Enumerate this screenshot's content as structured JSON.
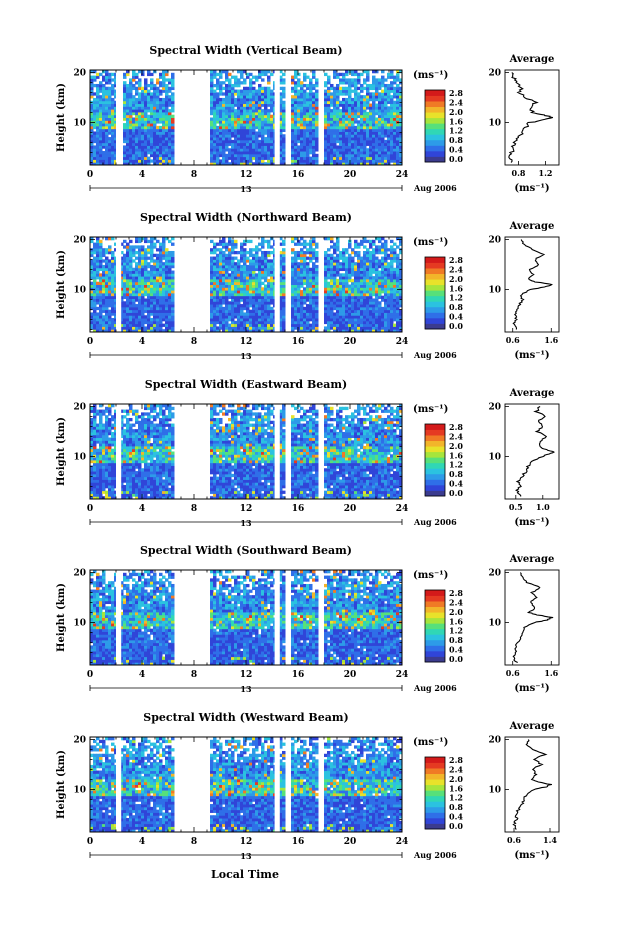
{
  "figure": {
    "xlabel": "Local Time",
    "date_label": "Aug 2006",
    "day_label": "13",
    "ylabel": "Height (km)",
    "unit_label": "(ms⁻¹)",
    "avg_title": "Average",
    "avg_xlabel": "(ms⁻¹)"
  },
  "colorbar": {
    "ticks": [
      "0.0",
      "0.4",
      "0.8",
      "1.2",
      "1.6",
      "2.0",
      "2.4",
      "2.8"
    ],
    "colors": [
      "#3b3b8f",
      "#3045d8",
      "#2f6fe8",
      "#2d9be8",
      "#2bc2e0",
      "#30d7b5",
      "#57e07a",
      "#a6e53c",
      "#e8e22a",
      "#f2b52a",
      "#f07a25",
      "#e53a22",
      "#d41a1a"
    ]
  },
  "chart_data": [
    {
      "type": "heatmap",
      "title": "Spectral Width (Vertical Beam)",
      "x_ticks": [
        0,
        4,
        8,
        12,
        16,
        20,
        24
      ],
      "xlim": [
        0,
        24
      ],
      "y_ticks": [
        10,
        20
      ],
      "ylim": [
        1.5,
        20.5
      ],
      "gaps": [
        [
          2.0,
          2.5
        ],
        [
          6.5,
          9.2
        ],
        [
          14.2,
          14.6
        ],
        [
          15.1,
          15.4
        ],
        [
          17.6,
          18.0
        ]
      ],
      "avg_ticks": [
        "0.8",
        "1.2"
      ],
      "avg_xlim": [
        0.6,
        1.4
      ],
      "avg_profile": [
        [
          2,
          0.72
        ],
        [
          3,
          0.68
        ],
        [
          4,
          0.7
        ],
        [
          5,
          0.72
        ],
        [
          6,
          0.75
        ],
        [
          7,
          0.8
        ],
        [
          8,
          0.85
        ],
        [
          9,
          0.9
        ],
        [
          10,
          0.97
        ],
        [
          10.5,
          1.15
        ],
        [
          11,
          1.32
        ],
        [
          11.5,
          1.18
        ],
        [
          12,
          1.02
        ],
        [
          13,
          0.98
        ],
        [
          14,
          1.05
        ],
        [
          15,
          0.9
        ],
        [
          16,
          0.82
        ],
        [
          17,
          0.85
        ],
        [
          18,
          0.76
        ],
        [
          19,
          0.73
        ],
        [
          20,
          0.7
        ]
      ]
    },
    {
      "type": "heatmap",
      "title": "Spectral Width (Northward Beam)",
      "x_ticks": [
        0,
        4,
        8,
        12,
        16,
        20,
        24
      ],
      "xlim": [
        0,
        24
      ],
      "y_ticks": [
        10,
        20
      ],
      "ylim": [
        1.5,
        20.5
      ],
      "gaps": [
        [
          2.0,
          2.4
        ],
        [
          6.5,
          9.2
        ],
        [
          14.2,
          14.6
        ],
        [
          15.1,
          15.4
        ],
        [
          17.6,
          18.0
        ]
      ],
      "avg_ticks": [
        "0.6",
        "1.6"
      ],
      "avg_xlim": [
        0.4,
        1.8
      ],
      "avg_profile": [
        [
          2,
          0.72
        ],
        [
          3,
          0.62
        ],
        [
          4,
          0.7
        ],
        [
          5,
          0.66
        ],
        [
          6,
          0.72
        ],
        [
          7,
          0.78
        ],
        [
          8,
          0.85
        ],
        [
          9,
          0.82
        ],
        [
          10,
          1.05
        ],
        [
          10.5,
          1.45
        ],
        [
          11,
          1.62
        ],
        [
          11.5,
          1.2
        ],
        [
          12,
          1.0
        ],
        [
          13,
          1.12
        ],
        [
          14,
          1.05
        ],
        [
          15,
          1.28
        ],
        [
          16,
          1.18
        ],
        [
          17,
          1.4
        ],
        [
          18,
          1.1
        ],
        [
          19,
          0.9
        ],
        [
          20,
          0.82
        ]
      ]
    },
    {
      "type": "heatmap",
      "title": "Spectral Width (Eastward Beam)",
      "x_ticks": [
        0,
        4,
        8,
        12,
        16,
        20,
        24
      ],
      "xlim": [
        0,
        24
      ],
      "y_ticks": [
        10,
        20
      ],
      "ylim": [
        1.5,
        20.5
      ],
      "gaps": [
        [
          2.0,
          2.4
        ],
        [
          6.5,
          9.2
        ],
        [
          14.2,
          14.6
        ],
        [
          15.1,
          15.4
        ],
        [
          17.6,
          18.0
        ]
      ],
      "avg_ticks": [
        "0.5",
        "1.0"
      ],
      "avg_xlim": [
        0.3,
        1.3
      ],
      "avg_profile": [
        [
          2,
          0.6
        ],
        [
          3,
          0.52
        ],
        [
          4,
          0.58
        ],
        [
          5,
          0.55
        ],
        [
          6,
          0.62
        ],
        [
          7,
          0.68
        ],
        [
          8,
          0.72
        ],
        [
          9,
          0.82
        ],
        [
          10,
          0.98
        ],
        [
          10.5,
          1.12
        ],
        [
          11,
          1.2
        ],
        [
          11.5,
          1.02
        ],
        [
          12,
          0.92
        ],
        [
          13,
          0.95
        ],
        [
          14,
          1.05
        ],
        [
          15,
          0.9
        ],
        [
          16,
          1.02
        ],
        [
          17,
          0.92
        ],
        [
          18,
          1.05
        ],
        [
          19,
          0.88
        ],
        [
          20,
          0.95
        ]
      ]
    },
    {
      "type": "heatmap",
      "title": "Spectral Width (Southward Beam)",
      "x_ticks": [
        0,
        4,
        8,
        12,
        16,
        20,
        24
      ],
      "xlim": [
        0,
        24
      ],
      "y_ticks": [
        10,
        20
      ],
      "ylim": [
        1.5,
        20.5
      ],
      "gaps": [
        [
          2.0,
          2.4
        ],
        [
          6.5,
          9.2
        ],
        [
          14.2,
          14.6
        ],
        [
          15.1,
          15.4
        ],
        [
          17.6,
          18.0
        ]
      ],
      "avg_ticks": [
        "0.6",
        "1.6"
      ],
      "avg_xlim": [
        0.4,
        1.8
      ],
      "avg_profile": [
        [
          2,
          0.7
        ],
        [
          3,
          0.62
        ],
        [
          4,
          0.68
        ],
        [
          5,
          0.66
        ],
        [
          6,
          0.72
        ],
        [
          7,
          0.8
        ],
        [
          8,
          0.88
        ],
        [
          9,
          0.92
        ],
        [
          10,
          1.15
        ],
        [
          10.5,
          1.5
        ],
        [
          11,
          1.62
        ],
        [
          11.5,
          1.25
        ],
        [
          12,
          1.02
        ],
        [
          13,
          1.18
        ],
        [
          14,
          1.05
        ],
        [
          15,
          1.2
        ],
        [
          16,
          1.1
        ],
        [
          17,
          1.32
        ],
        [
          18,
          0.98
        ],
        [
          19,
          0.86
        ],
        [
          20,
          0.8
        ]
      ]
    },
    {
      "type": "heatmap",
      "title": "Spectral Width (Westward Beam)",
      "x_ticks": [
        0,
        4,
        8,
        12,
        16,
        20,
        24
      ],
      "xlim": [
        0,
        24
      ],
      "y_ticks": [
        10,
        20
      ],
      "ylim": [
        1.5,
        20.5
      ],
      "gaps": [
        [
          2.0,
          2.4
        ],
        [
          6.5,
          9.2
        ],
        [
          14.2,
          14.6
        ],
        [
          15.1,
          15.4
        ],
        [
          17.6,
          18.0
        ]
      ],
      "avg_ticks": [
        "0.6",
        "1.4"
      ],
      "avg_xlim": [
        0.4,
        1.6
      ],
      "avg_profile": [
        [
          2,
          0.68
        ],
        [
          3,
          0.6
        ],
        [
          4,
          0.66
        ],
        [
          5,
          0.64
        ],
        [
          6,
          0.7
        ],
        [
          7,
          0.78
        ],
        [
          8,
          0.82
        ],
        [
          9,
          0.88
        ],
        [
          10,
          1.05
        ],
        [
          10.5,
          1.3
        ],
        [
          11,
          1.42
        ],
        [
          11.5,
          1.15
        ],
        [
          12,
          1.0
        ],
        [
          13,
          1.08
        ],
        [
          14,
          1.02
        ],
        [
          15,
          1.2
        ],
        [
          16,
          1.05
        ],
        [
          17,
          1.28
        ],
        [
          18,
          1.02
        ],
        [
          19,
          0.88
        ],
        [
          20,
          0.92
        ]
      ]
    }
  ]
}
